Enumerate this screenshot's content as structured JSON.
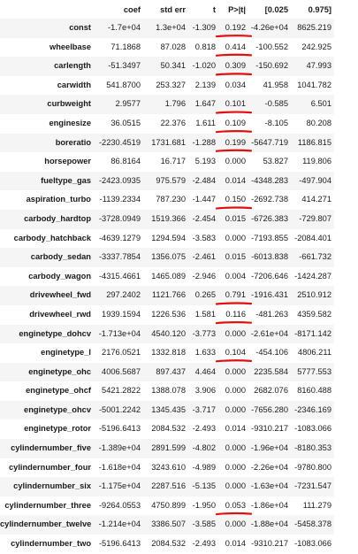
{
  "table": {
    "columns": [
      "",
      "coef",
      "std err",
      "t",
      "P>|t|",
      "[0.025",
      "0.975]"
    ],
    "rows": [
      {
        "name": "const",
        "coef": "-1.7e+04",
        "std_err": "1.3e+04",
        "t": "-1.309",
        "p": "0.192",
        "lo": "-4.26e+04",
        "hi": "8625.219",
        "underlined": true
      },
      {
        "name": "wheelbase",
        "coef": "71.1868",
        "std_err": "87.028",
        "t": "0.818",
        "p": "0.414",
        "lo": "-100.552",
        "hi": "242.925",
        "underlined": true
      },
      {
        "name": "carlength",
        "coef": "-51.3497",
        "std_err": "50.341",
        "t": "-1.020",
        "p": "0.309",
        "lo": "-150.692",
        "hi": "47.993",
        "underlined": true
      },
      {
        "name": "carwidth",
        "coef": "541.8700",
        "std_err": "253.327",
        "t": "2.139",
        "p": "0.034",
        "lo": "41.958",
        "hi": "1041.782",
        "underlined": false
      },
      {
        "name": "curbweight",
        "coef": "2.9577",
        "std_err": "1.796",
        "t": "1.647",
        "p": "0.101",
        "lo": "-0.585",
        "hi": "6.501",
        "underlined": true
      },
      {
        "name": "enginesize",
        "coef": "36.0515",
        "std_err": "22.376",
        "t": "1.611",
        "p": "0.109",
        "lo": "-8.105",
        "hi": "80.208",
        "underlined": true
      },
      {
        "name": "boreratio",
        "coef": "-2230.4519",
        "std_err": "1731.681",
        "t": "-1.288",
        "p": "0.199",
        "lo": "-5647.719",
        "hi": "1186.815",
        "underlined": true
      },
      {
        "name": "horsepower",
        "coef": "86.8164",
        "std_err": "16.717",
        "t": "5.193",
        "p": "0.000",
        "lo": "53.827",
        "hi": "119.806",
        "underlined": false
      },
      {
        "name": "fueltype_gas",
        "coef": "-2423.0935",
        "std_err": "975.579",
        "t": "-2.484",
        "p": "0.014",
        "lo": "-4348.283",
        "hi": "-497.904",
        "underlined": false
      },
      {
        "name": "aspiration_turbo",
        "coef": "-1139.2334",
        "std_err": "787.230",
        "t": "-1.447",
        "p": "0.150",
        "lo": "-2692.738",
        "hi": "414.271",
        "underlined": true
      },
      {
        "name": "carbody_hardtop",
        "coef": "-3728.0949",
        "std_err": "1519.366",
        "t": "-2.454",
        "p": "0.015",
        "lo": "-6726.383",
        "hi": "-729.807",
        "underlined": false
      },
      {
        "name": "carbody_hatchback",
        "coef": "-4639.1279",
        "std_err": "1294.594",
        "t": "-3.583",
        "p": "0.000",
        "lo": "-7193.855",
        "hi": "-2084.401",
        "underlined": false
      },
      {
        "name": "carbody_sedan",
        "coef": "-3337.7854",
        "std_err": "1356.075",
        "t": "-2.461",
        "p": "0.015",
        "lo": "-6013.838",
        "hi": "-661.732",
        "underlined": false
      },
      {
        "name": "carbody_wagon",
        "coef": "-4315.4661",
        "std_err": "1465.089",
        "t": "-2.946",
        "p": "0.004",
        "lo": "-7206.646",
        "hi": "-1424.287",
        "underlined": false
      },
      {
        "name": "drivewheel_fwd",
        "coef": "297.2402",
        "std_err": "1121.766",
        "t": "0.265",
        "p": "0.791",
        "lo": "-1916.431",
        "hi": "2510.912",
        "underlined": true
      },
      {
        "name": "drivewheel_rwd",
        "coef": "1939.1594",
        "std_err": "1226.536",
        "t": "1.581",
        "p": "0.116",
        "lo": "-481.263",
        "hi": "4359.582",
        "underlined": true
      },
      {
        "name": "enginetype_dohcv",
        "coef": "-1.713e+04",
        "std_err": "4540.120",
        "t": "-3.773",
        "p": "0.000",
        "lo": "-2.61e+04",
        "hi": "-8171.142",
        "underlined": false
      },
      {
        "name": "enginetype_l",
        "coef": "2176.0521",
        "std_err": "1332.818",
        "t": "1.633",
        "p": "0.104",
        "lo": "-454.106",
        "hi": "4806.211",
        "underlined": true
      },
      {
        "name": "enginetype_ohc",
        "coef": "4006.5687",
        "std_err": "897.437",
        "t": "4.464",
        "p": "0.000",
        "lo": "2235.584",
        "hi": "5777.553",
        "underlined": false
      },
      {
        "name": "enginetype_ohcf",
        "coef": "5421.2822",
        "std_err": "1388.078",
        "t": "3.906",
        "p": "0.000",
        "lo": "2682.076",
        "hi": "8160.488",
        "underlined": false
      },
      {
        "name": "enginetype_ohcv",
        "coef": "-5001.2242",
        "std_err": "1345.435",
        "t": "-3.717",
        "p": "0.000",
        "lo": "-7656.280",
        "hi": "-2346.169",
        "underlined": false
      },
      {
        "name": "enginetype_rotor",
        "coef": "-5196.6413",
        "std_err": "2084.532",
        "t": "-2.493",
        "p": "0.014",
        "lo": "-9310.217",
        "hi": "-1083.066",
        "underlined": false
      },
      {
        "name": "cylindernumber_five",
        "coef": "-1.389e+04",
        "std_err": "2891.599",
        "t": "-4.802",
        "p": "0.000",
        "lo": "-1.96e+04",
        "hi": "-8180.353",
        "underlined": false
      },
      {
        "name": "cylindernumber_four",
        "coef": "-1.618e+04",
        "std_err": "3243.610",
        "t": "-4.989",
        "p": "0.000",
        "lo": "-2.26e+04",
        "hi": "-9780.800",
        "underlined": false
      },
      {
        "name": "cylindernumber_six",
        "coef": "-1.175e+04",
        "std_err": "2287.516",
        "t": "-5.135",
        "p": "0.000",
        "lo": "-1.63e+04",
        "hi": "-7231.547",
        "underlined": false
      },
      {
        "name": "cylindernumber_three",
        "coef": "-9264.0553",
        "std_err": "4750.899",
        "t": "-1.950",
        "p": "0.053",
        "lo": "-1.86e+04",
        "hi": "111.279",
        "underlined": true
      },
      {
        "name": "cylindernumber_twelve",
        "coef": "-1.214e+04",
        "std_err": "3386.507",
        "t": "-3.585",
        "p": "0.000",
        "lo": "-1.88e+04",
        "hi": "-5458.378",
        "underlined": false
      },
      {
        "name": "cylindernumber_two",
        "coef": "-5196.6413",
        "std_err": "2084.532",
        "t": "-2.493",
        "p": "0.014",
        "lo": "-9310.217",
        "hi": "-1083.066",
        "underlined": false
      }
    ]
  },
  "annotation_color": "#e01010"
}
